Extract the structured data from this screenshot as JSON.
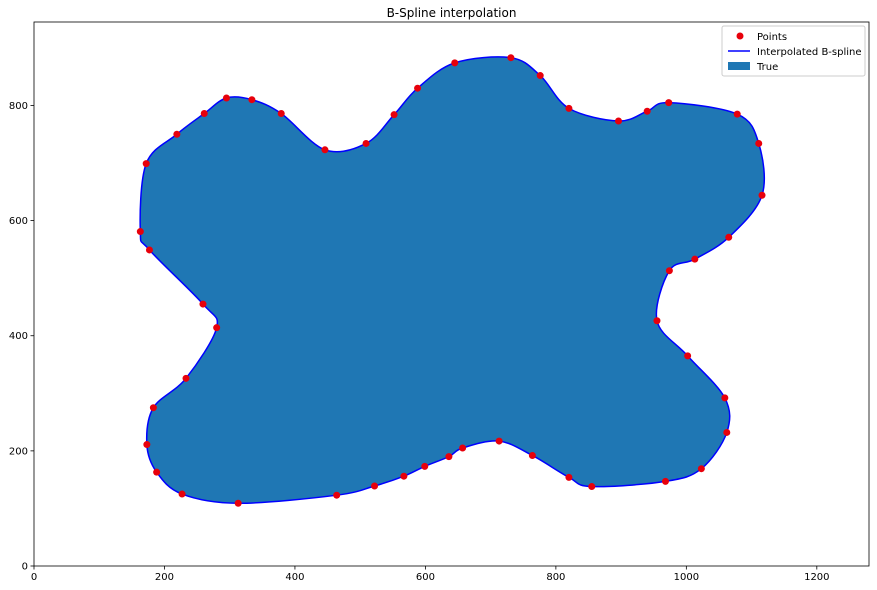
{
  "chart_data": {
    "type": "scatter",
    "title": "B-Spline interpolation",
    "xlabel": "",
    "ylabel": "",
    "xlim": [
      0,
      1280
    ],
    "ylim": [
      0,
      945
    ],
    "xticks": [
      0,
      200,
      400,
      600,
      800,
      1000,
      1200
    ],
    "yticks": [
      0,
      200,
      400,
      600,
      800
    ],
    "grid": false,
    "legend_position": "top-right",
    "legend": [
      "Points",
      "Interpolated B-spline",
      "True"
    ],
    "colors": {
      "points": "#e8000b",
      "spline": "#0000ff",
      "fill": "#1f77b4"
    },
    "series": [
      {
        "name": "Points",
        "points": [
          [
            731,
            883
          ],
          [
            776,
            852
          ],
          [
            820,
            795
          ],
          [
            896,
            773
          ],
          [
            940,
            790
          ],
          [
            973,
            805
          ],
          [
            1078,
            785
          ],
          [
            1111,
            734
          ],
          [
            1116,
            644
          ],
          [
            1065,
            571
          ],
          [
            1013,
            533
          ],
          [
            974,
            513
          ],
          [
            955,
            426
          ],
          [
            1002,
            365
          ],
          [
            1059,
            292
          ],
          [
            1062,
            232
          ],
          [
            1023,
            169
          ],
          [
            968,
            147
          ],
          [
            855,
            138
          ],
          [
            820,
            154
          ],
          [
            764,
            192
          ],
          [
            713,
            217
          ],
          [
            657,
            205
          ],
          [
            636,
            190
          ],
          [
            599,
            173
          ],
          [
            567,
            156
          ],
          [
            522,
            139
          ],
          [
            464,
            123
          ],
          [
            313,
            109
          ],
          [
            227,
            125
          ],
          [
            188,
            163
          ],
          [
            173,
            211
          ],
          [
            183,
            275
          ],
          [
            233,
            326
          ],
          [
            280,
            414
          ],
          [
            259,
            455
          ],
          [
            177,
            549
          ],
          [
            163,
            581
          ],
          [
            172,
            699
          ],
          [
            219,
            750
          ],
          [
            261,
            786
          ],
          [
            295,
            813
          ],
          [
            334,
            810
          ],
          [
            379,
            786
          ],
          [
            446,
            723
          ],
          [
            509,
            734
          ],
          [
            552,
            784
          ],
          [
            588,
            830
          ],
          [
            645,
            874
          ]
        ]
      },
      {
        "name": "Interpolated B-spline",
        "closed": true
      },
      {
        "name": "True",
        "closed": true
      }
    ]
  }
}
